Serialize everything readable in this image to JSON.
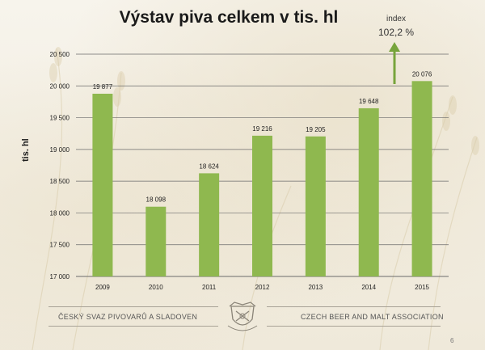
{
  "slide": {
    "title": "Výstav piva celkem v tis. hl",
    "index_label": "index",
    "index_value": "102,2 %",
    "footer_left": "ČESKÝ SVAZ PIVOVARŮ A SLADOVEN",
    "footer_right": "CZECH BEER AND MALT ASSOCIATION",
    "page_number": "6"
  },
  "colors": {
    "bar": "#8fb84f",
    "arrow": "#77a43c",
    "gridline": "#6b6b6b"
  },
  "chart_data": {
    "type": "bar",
    "title": "Výstav piva celkem v tis. hl",
    "xlabel": "",
    "ylabel": "tis. hl",
    "categories": [
      "2009",
      "2010",
      "2011",
      "2012",
      "2013",
      "2014",
      "2015"
    ],
    "values": [
      19877,
      18098,
      18624,
      19216,
      19205,
      19648,
      20076
    ],
    "data_labels": [
      "19 877",
      "18 098",
      "18 624",
      "19 216",
      "19 205",
      "19 648",
      "20 076"
    ],
    "ylim": [
      17000,
      20500
    ],
    "yticks": [
      17000,
      17500,
      18000,
      18500,
      19000,
      19500,
      20000,
      20500
    ],
    "ytick_labels": [
      "17 000",
      "17 500",
      "18 000",
      "18 500",
      "19 000",
      "19 500",
      "20 000",
      "20 500"
    ],
    "grid": true,
    "legend": "none"
  }
}
